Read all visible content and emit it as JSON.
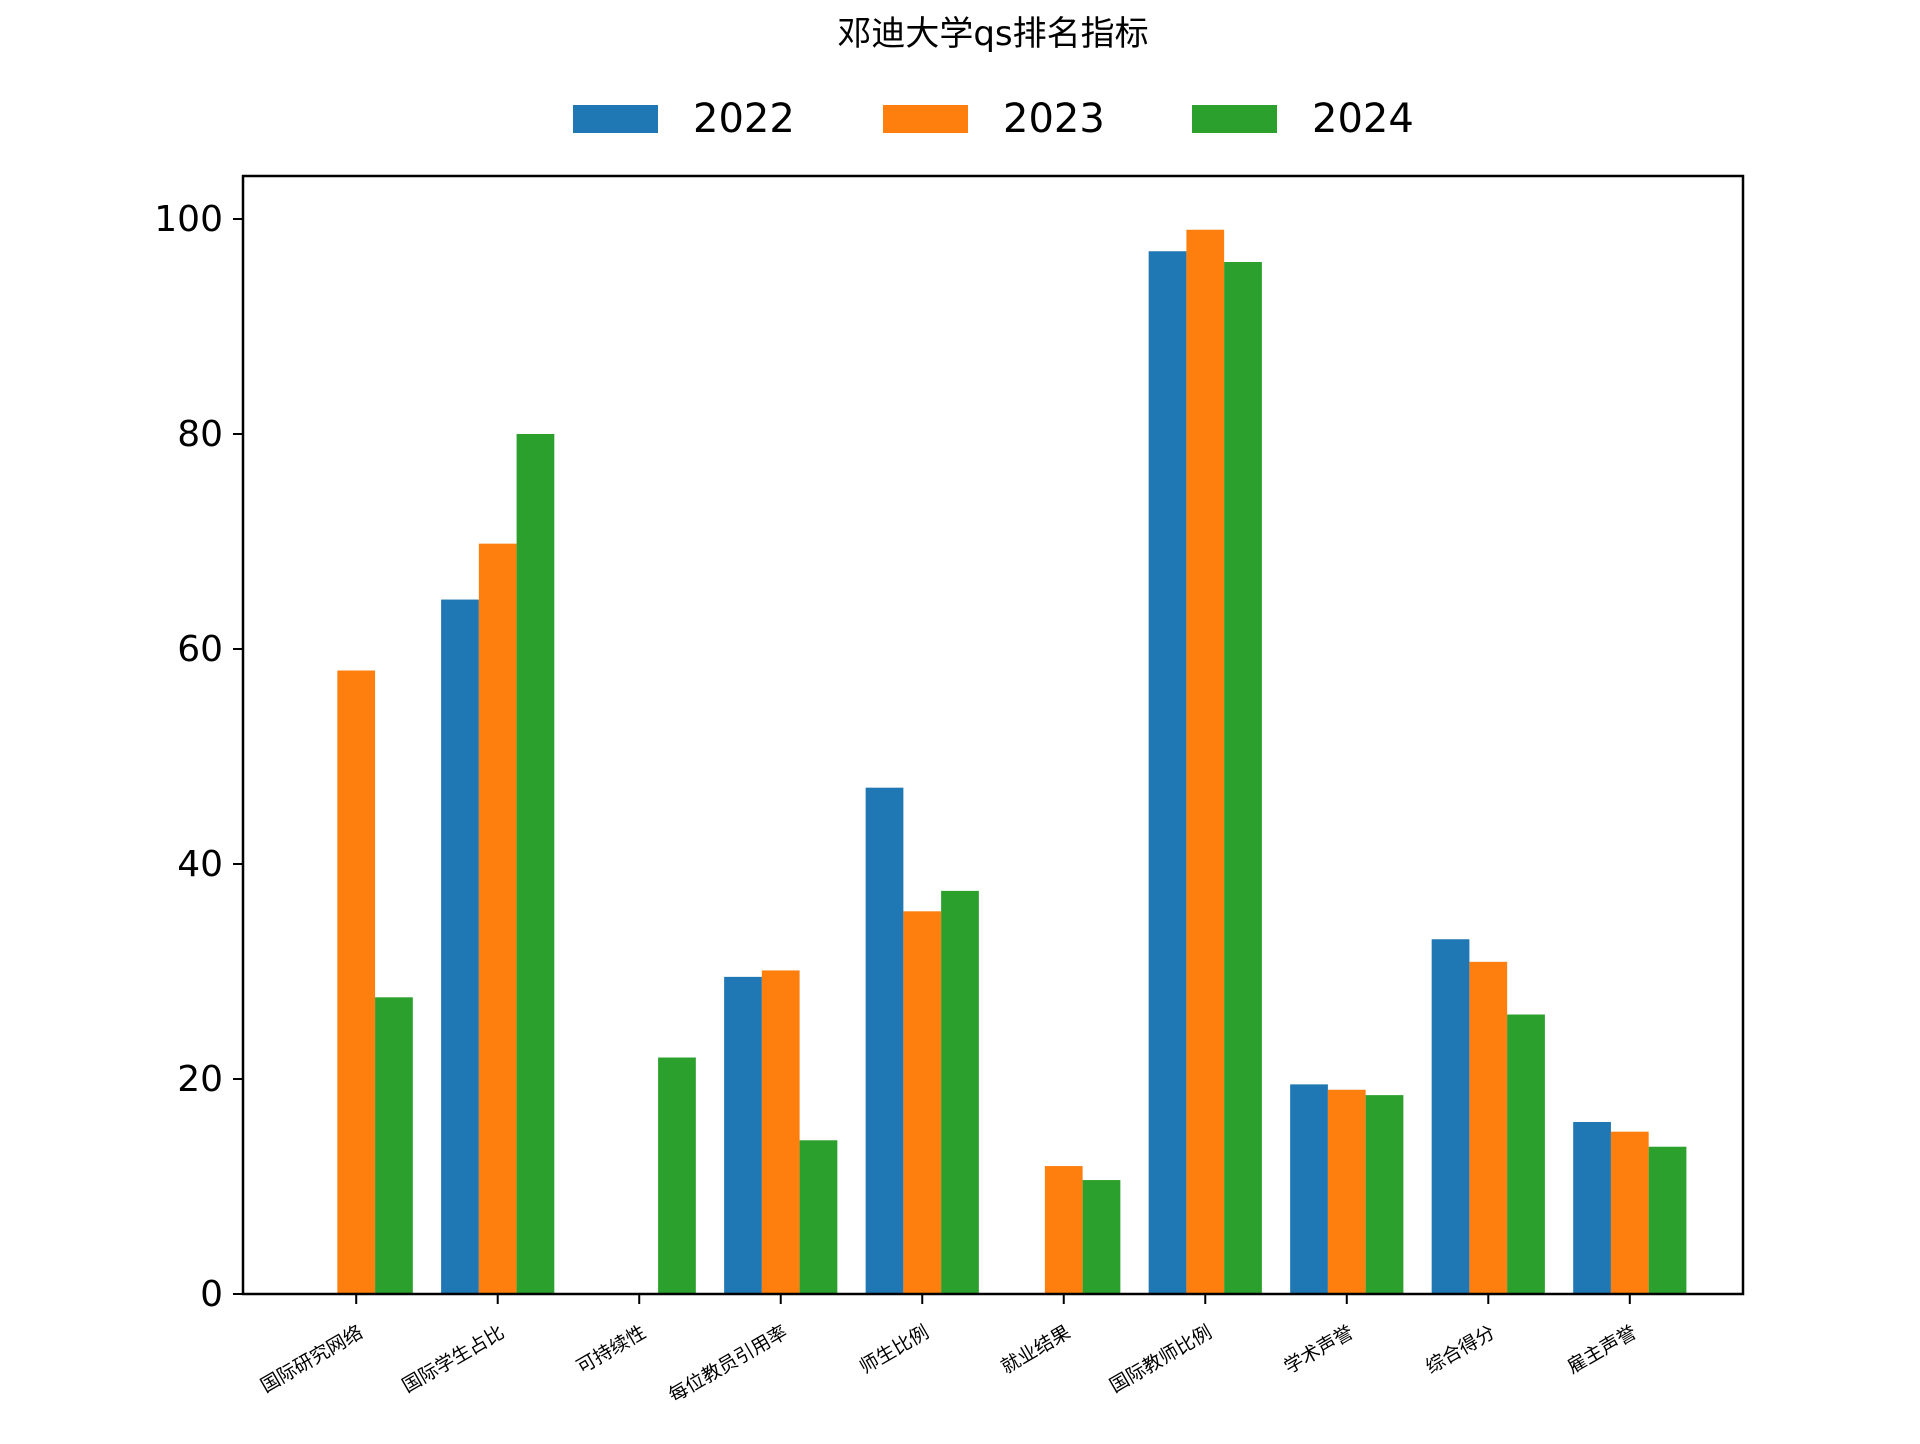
{
  "chart_data": {
    "type": "bar",
    "title": "邓迪大学qs排名指标",
    "xlabel": "",
    "ylabel": "",
    "ylim": [
      0,
      104
    ],
    "yticks": [
      0,
      20,
      40,
      60,
      80,
      100
    ],
    "grid": false,
    "legend_position": "top-center",
    "categories": [
      "国际研究网络",
      "国际学生占比",
      "可持续性",
      "每位教员引用率",
      "师生比例",
      "就业结果",
      "国际教师比例",
      "学术声誉",
      "综合得分",
      "雇主声誉"
    ],
    "series": [
      {
        "name": "2022",
        "color": "#1f77b4",
        "values": [
          null,
          64.6,
          null,
          29.5,
          47.1,
          null,
          97.0,
          19.5,
          33.0,
          16.0
        ]
      },
      {
        "name": "2023",
        "color": "#ff7f0e",
        "values": [
          58.0,
          69.8,
          null,
          30.1,
          35.6,
          11.9,
          99.0,
          19.0,
          30.9,
          15.1
        ]
      },
      {
        "name": "2024",
        "color": "#2ca02c",
        "values": [
          27.6,
          80.0,
          22.0,
          14.3,
          37.5,
          10.6,
          96.0,
          18.5,
          26.0,
          13.7
        ]
      }
    ]
  }
}
